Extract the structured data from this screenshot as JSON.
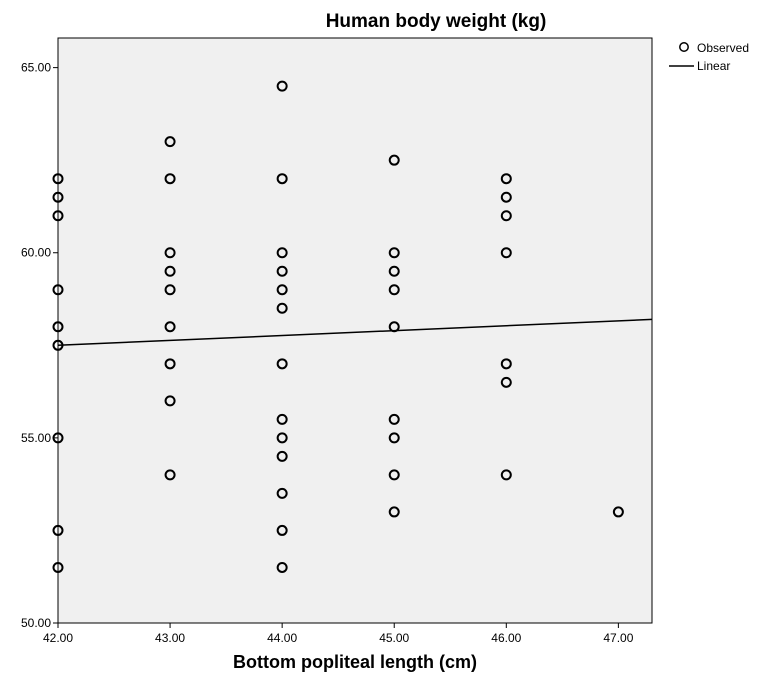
{
  "chart_data": {
    "type": "scatter",
    "title": "Human body weight (kg)",
    "xlabel": "Bottom popliteal length (cm)",
    "ylabel": "",
    "xlim": [
      42.0,
      47.3
    ],
    "ylim": [
      50.0,
      65.8
    ],
    "x_ticks": [
      "42.00",
      "43.00",
      "44.00",
      "45.00",
      "46.00",
      "47.00"
    ],
    "y_ticks": [
      "50.00",
      "55.00",
      "60.00",
      "65.00"
    ],
    "x_tick_values": [
      42,
      43,
      44,
      45,
      46,
      47
    ],
    "y_tick_values": [
      50,
      55,
      60,
      65
    ],
    "grid": false,
    "legend_position": "top-right",
    "background_color": "#f0f0f0",
    "series": [
      {
        "name": "Observed",
        "marker": "open-circle",
        "points": [
          [
            42,
            62.0
          ],
          [
            42,
            61.5
          ],
          [
            42,
            61.0
          ],
          [
            42,
            59.0
          ],
          [
            42,
            58.0
          ],
          [
            42,
            57.5
          ],
          [
            42,
            55.0
          ],
          [
            42,
            52.5
          ],
          [
            42,
            51.5
          ],
          [
            43,
            63.0
          ],
          [
            43,
            62.0
          ],
          [
            43,
            60.0
          ],
          [
            43,
            59.5
          ],
          [
            43,
            59.0
          ],
          [
            43,
            58.0
          ],
          [
            43,
            57.0
          ],
          [
            43,
            56.0
          ],
          [
            43,
            54.0
          ],
          [
            44,
            64.5
          ],
          [
            44,
            62.0
          ],
          [
            44,
            60.0
          ],
          [
            44,
            59.5
          ],
          [
            44,
            59.0
          ],
          [
            44,
            58.5
          ],
          [
            44,
            57.0
          ],
          [
            44,
            55.5
          ],
          [
            44,
            55.0
          ],
          [
            44,
            54.5
          ],
          [
            44,
            53.5
          ],
          [
            44,
            52.5
          ],
          [
            44,
            51.5
          ],
          [
            45,
            62.5
          ],
          [
            45,
            60.0
          ],
          [
            45,
            59.5
          ],
          [
            45,
            59.0
          ],
          [
            45,
            58.0
          ],
          [
            45,
            55.5
          ],
          [
            45,
            55.0
          ],
          [
            45,
            54.0
          ],
          [
            45,
            53.0
          ],
          [
            46,
            62.0
          ],
          [
            46,
            61.5
          ],
          [
            46,
            61.0
          ],
          [
            46,
            60.0
          ],
          [
            46,
            57.0
          ],
          [
            46,
            56.5
          ],
          [
            46,
            54.0
          ],
          [
            47,
            53.0
          ]
        ]
      },
      {
        "name": "Linear",
        "type": "line",
        "x": [
          42.0,
          47.3
        ],
        "y": [
          57.5,
          58.2
        ]
      }
    ]
  }
}
